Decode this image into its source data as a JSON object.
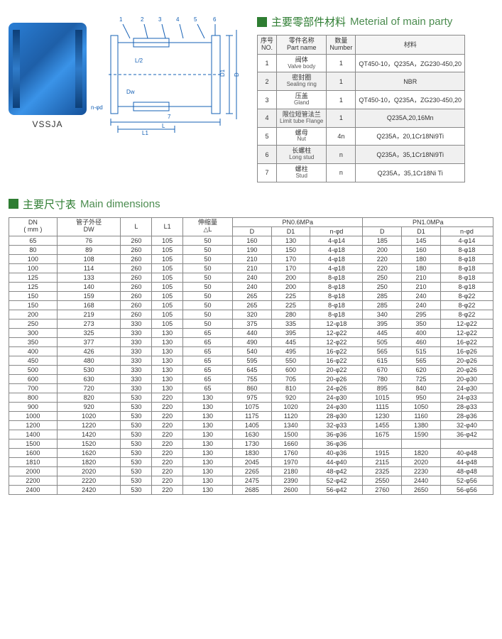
{
  "model_label": "VSSJA",
  "materials": {
    "title_cn": "主要零部件材料",
    "title_en": "Meterial of main party",
    "headers": {
      "no_cn": "序号",
      "no_en": "NO.",
      "part_cn": "零件名称",
      "part_en": "Part name",
      "num_cn": "数量",
      "num_en": "Number",
      "mat_cn": "材料"
    },
    "rows": [
      {
        "no": "1",
        "cn": "阀体",
        "en": "Valve body",
        "num": "1",
        "mat": "QT450-10，Q235A，ZG230-450,20"
      },
      {
        "no": "2",
        "cn": "密封圈",
        "en": "Sealing ring",
        "num": "1",
        "mat": "NBR"
      },
      {
        "no": "3",
        "cn": "压盖",
        "en": "Gland",
        "num": "1",
        "mat": "QT450-10，Q235A，ZG230-450,20"
      },
      {
        "no": "4",
        "cn": "限位短管法兰",
        "en": "Limit tube Flange",
        "num": "1",
        "mat": "Q235A,20,16Mn"
      },
      {
        "no": "5",
        "cn": "螺母",
        "en": "Nut",
        "num": "4n",
        "mat": "Q235A，20,1Cr18Ni9Ti"
      },
      {
        "no": "6",
        "cn": "长螺柱",
        "en": "Long stud",
        "num": "n",
        "mat": "Q235A，35,1Cr18Ni9Ti"
      },
      {
        "no": "7",
        "cn": "螺柱",
        "en": "Stud",
        "num": "n",
        "mat": "Q235A，35,1Cr18Ni  Ti"
      }
    ]
  },
  "dimensions": {
    "title_cn": "主要尺寸表",
    "title_en": "Main dimensions",
    "top_headers": {
      "dn": "DN",
      "dn_unit": "( mm )",
      "dw_cn": "管子外径",
      "dw": "DW",
      "L": "L",
      "L1": "L1",
      "dl_cn": "伸缩量",
      "dl": "△L",
      "pn06": "PN0.6MPa",
      "pn10": "PN1.0MPa",
      "D": "D",
      "D1": "D1",
      "nfd": "n-φd"
    },
    "rows": [
      [
        "65",
        "76",
        "260",
        "105",
        "50",
        "160",
        "130",
        "4-φ14",
        "185",
        "145",
        "4-φ14"
      ],
      [
        "80",
        "89",
        "260",
        "105",
        "50",
        "190",
        "150",
        "4-φ18",
        "200",
        "160",
        "8-φ18"
      ],
      [
        "100",
        "108",
        "260",
        "105",
        "50",
        "210",
        "170",
        "4-φ18",
        "220",
        "180",
        "8-φ18"
      ],
      [
        "100",
        "114",
        "260",
        "105",
        "50",
        "210",
        "170",
        "4-φ18",
        "220",
        "180",
        "8-φ18"
      ],
      [
        "125",
        "133",
        "260",
        "105",
        "50",
        "240",
        "200",
        "8-φ18",
        "250",
        "210",
        "8-φ18"
      ],
      [
        "125",
        "140",
        "260",
        "105",
        "50",
        "240",
        "200",
        "8-φ18",
        "250",
        "210",
        "8-φ18"
      ],
      [
        "150",
        "159",
        "260",
        "105",
        "50",
        "265",
        "225",
        "8-φ18",
        "285",
        "240",
        "8-φ22"
      ],
      [
        "150",
        "168",
        "260",
        "105",
        "50",
        "265",
        "225",
        "8-φ18",
        "285",
        "240",
        "8-φ22"
      ],
      [
        "200",
        "219",
        "260",
        "105",
        "50",
        "320",
        "280",
        "8-φ18",
        "340",
        "295",
        "8-φ22"
      ],
      [
        "250",
        "273",
        "330",
        "105",
        "50",
        "375",
        "335",
        "12-φ18",
        "395",
        "350",
        "12-φ22"
      ],
      [
        "300",
        "325",
        "330",
        "130",
        "65",
        "440",
        "395",
        "12-φ22",
        "445",
        "400",
        "12-φ22"
      ],
      [
        "350",
        "377",
        "330",
        "130",
        "65",
        "490",
        "445",
        "12-φ22",
        "505",
        "460",
        "16-φ22"
      ],
      [
        "400",
        "426",
        "330",
        "130",
        "65",
        "540",
        "495",
        "16-φ22",
        "565",
        "515",
        "16-φ26"
      ],
      [
        "450",
        "480",
        "330",
        "130",
        "65",
        "595",
        "550",
        "16-φ22",
        "615",
        "565",
        "20-φ26"
      ],
      [
        "500",
        "530",
        "330",
        "130",
        "65",
        "645",
        "600",
        "20-φ22",
        "670",
        "620",
        "20-φ26"
      ],
      [
        "600",
        "630",
        "330",
        "130",
        "65",
        "755",
        "705",
        "20-φ26",
        "780",
        "725",
        "20-φ30"
      ],
      [
        "700",
        "720",
        "330",
        "130",
        "65",
        "860",
        "810",
        "24-φ26",
        "895",
        "840",
        "24-φ30"
      ],
      [
        "800",
        "820",
        "530",
        "220",
        "130",
        "975",
        "920",
        "24-φ30",
        "1015",
        "950",
        "24-φ33"
      ],
      [
        "900",
        "920",
        "530",
        "220",
        "130",
        "1075",
        "1020",
        "24-φ30",
        "1115",
        "1050",
        "28-φ33"
      ],
      [
        "1000",
        "1020",
        "530",
        "220",
        "130",
        "1175",
        "1120",
        "28-φ30",
        "1230",
        "1160",
        "28-φ36"
      ],
      [
        "1200",
        "1220",
        "530",
        "220",
        "130",
        "1405",
        "1340",
        "32-φ33",
        "1455",
        "1380",
        "32-φ40"
      ],
      [
        "1400",
        "1420",
        "530",
        "220",
        "130",
        "1630",
        "1500",
        "36-φ36",
        "1675",
        "1590",
        "36-φ42"
      ],
      [
        "1500",
        "1520",
        "530",
        "220",
        "130",
        "1730",
        "1660",
        "36-φ36",
        "",
        "",
        ""
      ],
      [
        "1600",
        "1620",
        "530",
        "220",
        "130",
        "1830",
        "1760",
        "40-φ36",
        "1915",
        "1820",
        "40-φ48"
      ],
      [
        "1810",
        "1820",
        "530",
        "220",
        "130",
        "2045",
        "1970",
        "44-φ40",
        "2115",
        "2020",
        "44-φ48"
      ],
      [
        "2000",
        "2020",
        "530",
        "220",
        "130",
        "2265",
        "2180",
        "48-φ42",
        "2325",
        "2230",
        "48-φ48"
      ],
      [
        "2200",
        "2220",
        "530",
        "220",
        "130",
        "2475",
        "2390",
        "52-φ42",
        "2550",
        "2440",
        "52-φ56"
      ],
      [
        "2400",
        "2420",
        "530",
        "220",
        "130",
        "2685",
        "2600",
        "56-φ42",
        "2760",
        "2650",
        "56-φ56"
      ]
    ]
  },
  "colors": {
    "header_green": "#2e7d32",
    "diagram_blue": "#1560b5",
    "photo_grad_a": "#2a7fd6",
    "photo_grad_b": "#145099",
    "border": "#888888",
    "alt_row": "#f0f0f0"
  }
}
